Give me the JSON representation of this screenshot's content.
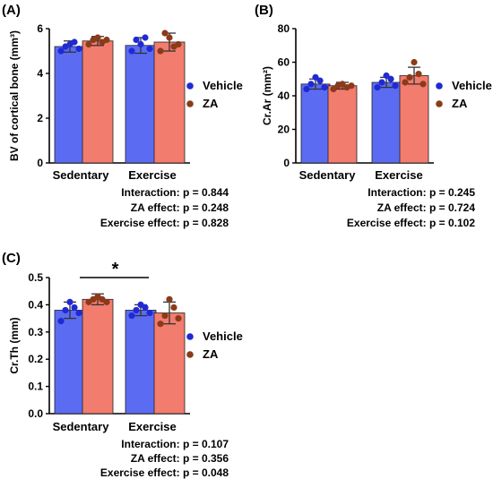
{
  "chart_data": [
    {
      "type": "bar",
      "panel_label": "(A)",
      "ylabel": "BV of cortical bone (mm³)",
      "ylim": [
        0,
        6
      ],
      "yticks": [
        "0",
        "2",
        "4",
        "6"
      ],
      "categories": [
        "Sedentary",
        "Exercise"
      ],
      "series": [
        {
          "name": "Vehicle",
          "values": [
            5.2,
            5.25
          ],
          "errors": [
            0.25,
            0.35
          ],
          "points": [
            [
              5.0,
              5.2,
              5.3,
              5.4,
              5.1
            ],
            [
              5.0,
              5.5,
              5.3,
              5.6,
              5.1
            ]
          ]
        },
        {
          "name": "ZA",
          "values": [
            5.45,
            5.4
          ],
          "errors": [
            0.2,
            0.4
          ],
          "points": [
            [
              5.3,
              5.5,
              5.6,
              5.4,
              5.5
            ],
            [
              5.0,
              5.8,
              5.6,
              5.2,
              5.3
            ]
          ]
        }
      ],
      "legend_position": "right",
      "stats": [
        "Interaction: p = 0.844",
        "ZA effect: p = 0.248",
        "Exercise effect: p = 0.828"
      ]
    },
    {
      "type": "bar",
      "panel_label": "(B)",
      "ylabel": "Cr.Ar (mm²)",
      "ylim": [
        0,
        80
      ],
      "yticks": [
        "0",
        "20",
        "40",
        "60",
        "80"
      ],
      "categories": [
        "Sedentary",
        "Exercise"
      ],
      "series": [
        {
          "name": "Vehicle",
          "values": [
            47,
            48
          ],
          "errors": [
            3,
            3
          ],
          "points": [
            [
              44,
              47,
              51,
              49,
              45
            ],
            [
              45,
              48,
              52,
              50,
              46
            ]
          ]
        },
        {
          "name": "ZA",
          "values": [
            46,
            52
          ],
          "errors": [
            2,
            5
          ],
          "points": [
            [
              44,
              46,
              47,
              45,
              46
            ],
            [
              48,
              51,
              60,
              53,
              47
            ]
          ]
        }
      ],
      "legend_position": "right",
      "stats": [
        "Interaction: p = 0.245",
        "ZA effect: p = 0.724",
        "Exercise effect: p = 0.102"
      ]
    },
    {
      "type": "bar",
      "panel_label": "(C)",
      "ylabel": "Cr.Th (mm)",
      "ylim": [
        0,
        0.5
      ],
      "yticks": [
        "0.0",
        "0.1",
        "0.2",
        "0.3",
        "0.4",
        "0.5"
      ],
      "categories": [
        "Sedentary",
        "Exercise"
      ],
      "series": [
        {
          "name": "Vehicle",
          "values": [
            0.38,
            0.38
          ],
          "errors": [
            0.03,
            0.02
          ],
          "points": [
            [
              0.34,
              0.38,
              0.41,
              0.39,
              0.37
            ],
            [
              0.36,
              0.38,
              0.4,
              0.39,
              0.37
            ]
          ]
        },
        {
          "name": "ZA",
          "values": [
            0.42,
            0.37
          ],
          "errors": [
            0.02,
            0.04
          ],
          "points": [
            [
              0.41,
              0.42,
              0.43,
              0.42,
              0.41
            ],
            [
              0.33,
              0.36,
              0.42,
              0.39,
              0.35
            ]
          ]
        }
      ],
      "legend_position": "right",
      "significance": {
        "label": "*",
        "between": [
          "Vehicle Sedentary",
          "ZA Exercise"
        ]
      },
      "stats": [
        "Interaction: p = 0.107",
        "ZA effect: p = 0.356",
        "Exercise effect: p = 0.048"
      ]
    }
  ],
  "colors": {
    "vehicle_bar": "#5b6cf2",
    "vehicle_dot": "#1f2ad4",
    "za_bar": "#f27c6e",
    "za_dot": "#8b3a1a",
    "bar_edge": "#222222",
    "error": "#333333"
  }
}
